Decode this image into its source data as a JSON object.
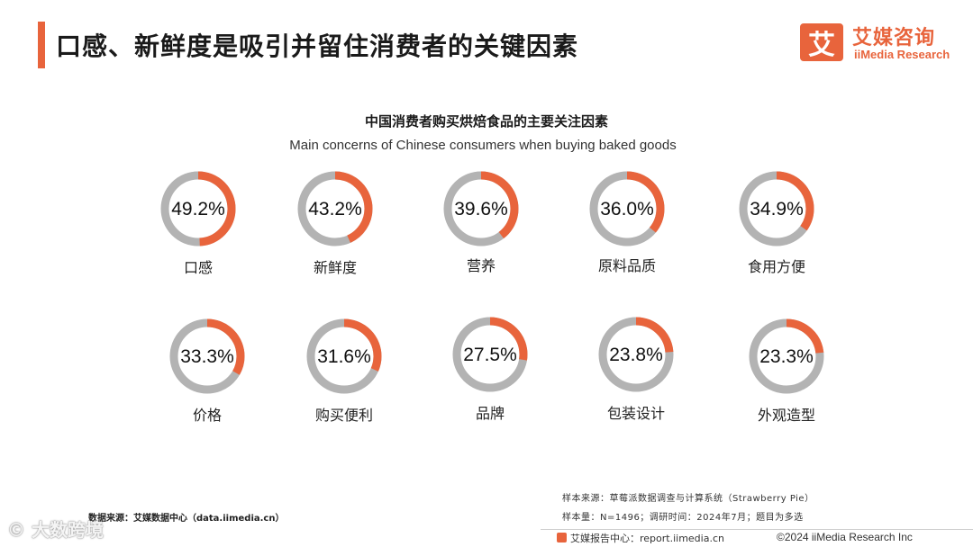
{
  "header": {
    "title": "口感、新鲜度是吸引并留住消费者的关键因素"
  },
  "logo": {
    "mark": "艾",
    "cn": "艾媒咨询",
    "en": "iiMedia Research"
  },
  "colors": {
    "accent": "#e8643c",
    "ring_background": "#b3b3b3"
  },
  "chart_data": {
    "type": "donut",
    "title": "中国消费者购买烘焙食品的主要关注因素",
    "subtitle": "Main concerns of Chinese consumers when buying baked goods",
    "unit": "%",
    "categories": [
      "口感",
      "新鲜度",
      "营养",
      "原料品质",
      "食用方便",
      "价格",
      "购买便利",
      "品牌",
      "包装设计",
      "外观造型"
    ],
    "values": [
      49.2,
      43.2,
      39.6,
      36.0,
      34.9,
      33.3,
      31.6,
      27.5,
      23.8,
      23.3
    ],
    "labels": [
      "49.2%",
      "43.2%",
      "39.6%",
      "36.0%",
      "34.9%",
      "33.3%",
      "31.6%",
      "27.5%",
      "23.8%",
      "23.3%"
    ],
    "max": 100
  },
  "footer": {
    "source": "数据来源：艾媒数据中心（data.iimedia.cn）",
    "sample_source": "样本来源：草莓派数据调查与计算系统（Strawberry Pie）",
    "sample_info": "样本量：N=1496；调研时间：2024年7月；题目为多选",
    "report_center": "艾媒报告中心：report.iimedia.cn",
    "copyright": "©2024  iiMedia Research  Inc",
    "watermark": "© 大数跨境"
  }
}
